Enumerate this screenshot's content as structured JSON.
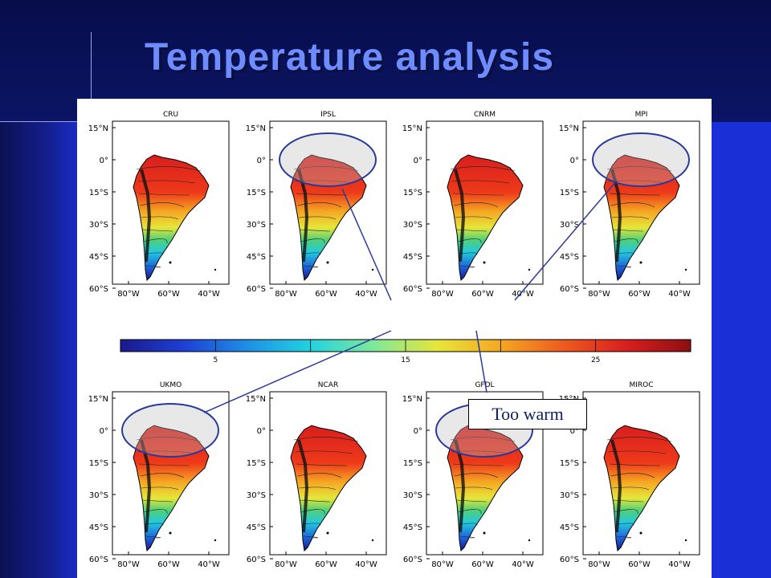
{
  "slide": {
    "title": "Temperature analysis",
    "callout_label": "Too warm"
  },
  "maps": [
    {
      "model": "CRU",
      "highlighted": false
    },
    {
      "model": "IPSL",
      "highlighted": true
    },
    {
      "model": "CNRM",
      "highlighted": false
    },
    {
      "model": "MPI",
      "highlighted": true
    },
    {
      "model": "UKMO",
      "highlighted": true
    },
    {
      "model": "NCAR",
      "highlighted": false
    },
    {
      "model": "GFDL",
      "highlighted": true
    },
    {
      "model": "MIROC",
      "highlighted": false
    }
  ],
  "axes": {
    "lat_ticks": [
      "15°N",
      "0°",
      "15°S",
      "30°S",
      "45°S",
      "60°S"
    ],
    "lon_ticks": [
      "80°W",
      "60°W",
      "40°W"
    ]
  },
  "colorbar": {
    "tick_labels": [
      "5",
      "15",
      "25"
    ],
    "colors": [
      "#1a1a8c",
      "#1e3fd6",
      "#1e8fe6",
      "#22d2e0",
      "#7fe89a",
      "#e6e63a",
      "#f5a623",
      "#ee5a1e",
      "#d81e1e",
      "#8c0f12"
    ]
  },
  "colors": {
    "title": "#6f8cff",
    "highlight_ellipse": "#2b3a9a",
    "callout_text": "#102060"
  }
}
